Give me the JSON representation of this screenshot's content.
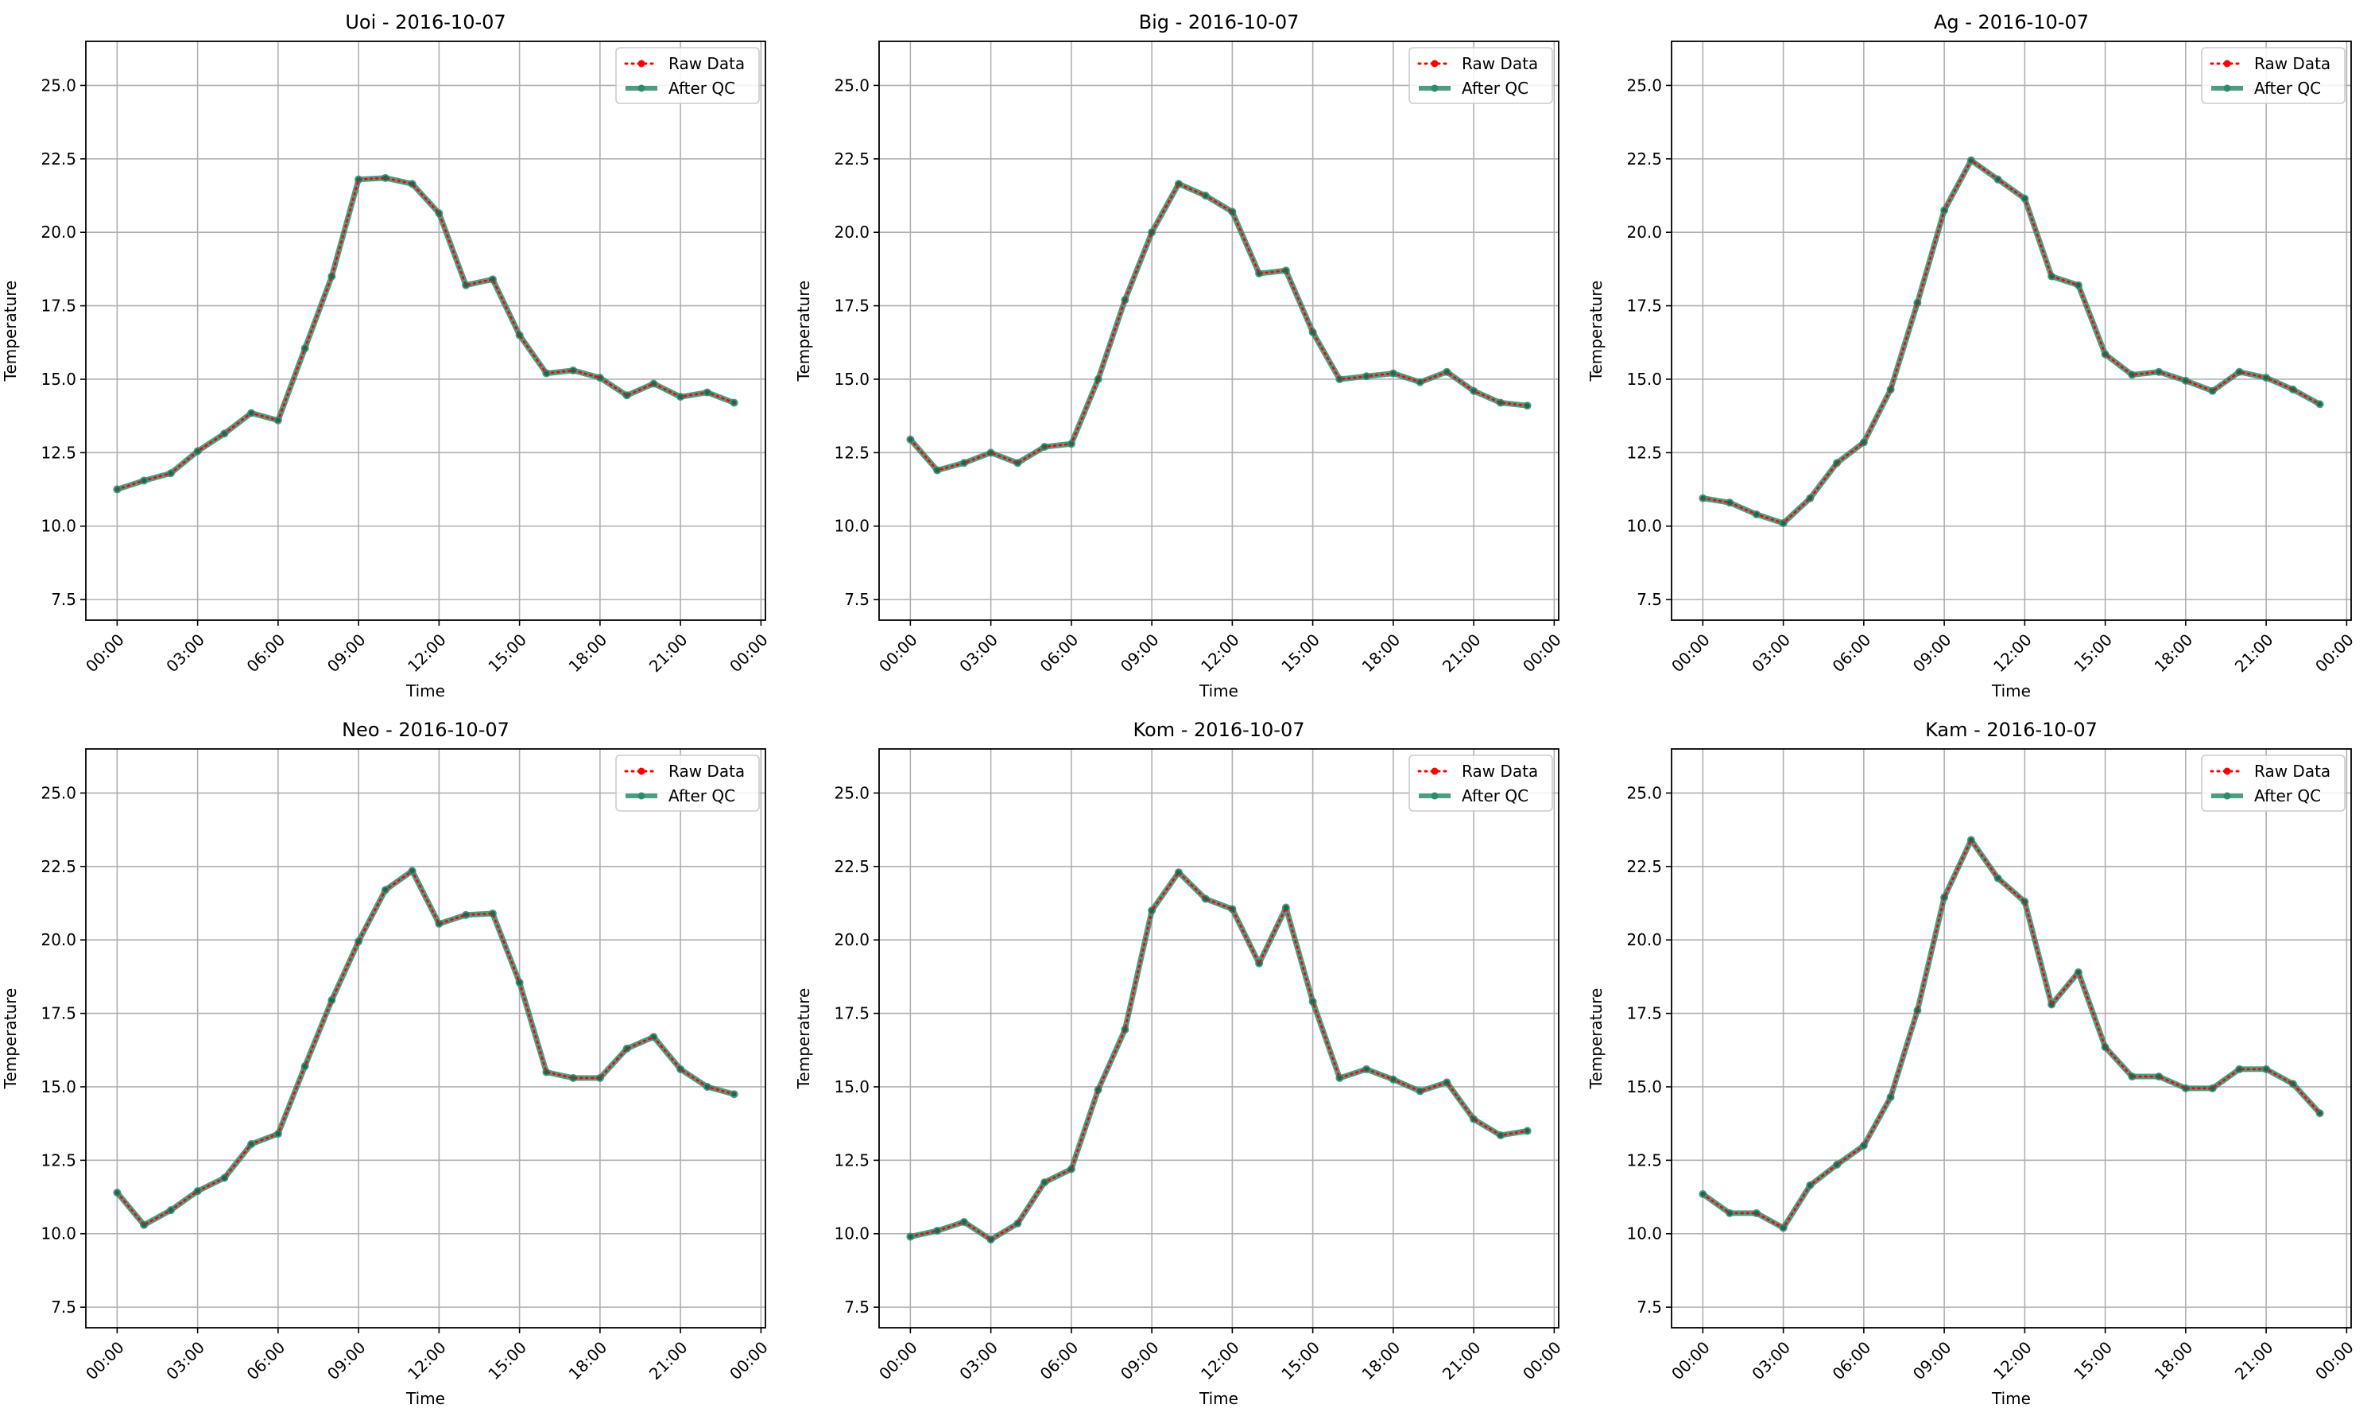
{
  "figure": {
    "legend": {
      "raw_label": "Raw Data",
      "qc_label": "After QC",
      "raw_color": "#ff0000",
      "qc_color": "#2e8b6e"
    }
  },
  "chart_data": [
    {
      "type": "line",
      "title": "Uoi - 2016-10-07",
      "xlabel": "Time",
      "ylabel": "Temperature",
      "x_ticks": [
        "00:00",
        "03:00",
        "06:00",
        "09:00",
        "12:00",
        "15:00",
        "18:00",
        "21:00",
        "00:00"
      ],
      "y_ticks": [
        "7.5",
        "10.0",
        "12.5",
        "15.0",
        "17.5",
        "20.0",
        "22.5",
        "25.0"
      ],
      "xlim": [
        "2016-10-06 22:50",
        "2016-10-08 00:10"
      ],
      "ylim": [
        6.8,
        26.5
      ],
      "grid": true,
      "legend_position": "upper-right",
      "x": [
        "00:00",
        "01:00",
        "02:00",
        "03:00",
        "04:00",
        "05:00",
        "06:00",
        "07:00",
        "08:00",
        "09:00",
        "10:00",
        "11:00",
        "12:00",
        "13:00",
        "14:00",
        "15:00",
        "16:00",
        "17:00",
        "18:00",
        "19:00",
        "20:00",
        "21:00",
        "22:00",
        "23:00"
      ],
      "series": [
        {
          "name": "Raw Data",
          "values": [
            11.25,
            11.55,
            11.8,
            12.55,
            13.15,
            13.85,
            13.6,
            16.05,
            18.5,
            21.8,
            21.85,
            21.65,
            20.65,
            18.2,
            18.4,
            16.5,
            15.2,
            15.3,
            15.05,
            14.45,
            14.85,
            14.4,
            14.55,
            14.2
          ]
        },
        {
          "name": "After QC",
          "values": [
            11.25,
            11.55,
            11.8,
            12.55,
            13.15,
            13.85,
            13.6,
            16.05,
            18.5,
            21.8,
            21.85,
            21.65,
            20.65,
            18.2,
            18.4,
            16.5,
            15.2,
            15.3,
            15.05,
            14.45,
            14.85,
            14.4,
            14.55,
            14.2
          ]
        }
      ]
    },
    {
      "type": "line",
      "title": "Big - 2016-10-07",
      "xlabel": "Time",
      "ylabel": "Temperature",
      "x_ticks": [
        "00:00",
        "03:00",
        "06:00",
        "09:00",
        "12:00",
        "15:00",
        "18:00",
        "21:00",
        "00:00"
      ],
      "y_ticks": [
        "7.5",
        "10.0",
        "12.5",
        "15.0",
        "17.5",
        "20.0",
        "22.5",
        "25.0"
      ],
      "xlim": [
        "2016-10-06 22:50",
        "2016-10-08 00:10"
      ],
      "ylim": [
        6.8,
        26.5
      ],
      "grid": true,
      "legend_position": "upper-right",
      "x": [
        "00:00",
        "01:00",
        "02:00",
        "03:00",
        "04:00",
        "05:00",
        "06:00",
        "07:00",
        "08:00",
        "09:00",
        "10:00",
        "11:00",
        "12:00",
        "13:00",
        "14:00",
        "15:00",
        "16:00",
        "17:00",
        "18:00",
        "19:00",
        "20:00",
        "21:00",
        "22:00",
        "23:00"
      ],
      "series": [
        {
          "name": "Raw Data",
          "values": [
            12.95,
            11.9,
            12.15,
            12.5,
            12.15,
            12.7,
            12.8,
            15.0,
            17.7,
            20.0,
            21.65,
            21.25,
            20.7,
            18.6,
            18.7,
            16.6,
            15.0,
            15.1,
            15.2,
            14.9,
            15.25,
            14.6,
            14.2,
            14.1
          ]
        },
        {
          "name": "After QC",
          "values": [
            12.95,
            11.9,
            12.15,
            12.5,
            12.15,
            12.7,
            12.8,
            15.0,
            17.7,
            20.0,
            21.65,
            21.25,
            20.7,
            18.6,
            18.7,
            16.6,
            15.0,
            15.1,
            15.2,
            14.9,
            15.25,
            14.6,
            14.2,
            14.1
          ]
        }
      ]
    },
    {
      "type": "line",
      "title": "Ag - 2016-10-07",
      "xlabel": "Time",
      "ylabel": "Temperature",
      "x_ticks": [
        "00:00",
        "03:00",
        "06:00",
        "09:00",
        "12:00",
        "15:00",
        "18:00",
        "21:00",
        "00:00"
      ],
      "y_ticks": [
        "7.5",
        "10.0",
        "12.5",
        "15.0",
        "17.5",
        "20.0",
        "22.5",
        "25.0"
      ],
      "xlim": [
        "2016-10-06 22:50",
        "2016-10-08 00:10"
      ],
      "ylim": [
        6.8,
        26.5
      ],
      "grid": true,
      "legend_position": "upper-right",
      "x": [
        "00:00",
        "01:00",
        "02:00",
        "03:00",
        "04:00",
        "05:00",
        "06:00",
        "07:00",
        "08:00",
        "09:00",
        "10:00",
        "11:00",
        "12:00",
        "13:00",
        "14:00",
        "15:00",
        "16:00",
        "17:00",
        "18:00",
        "19:00",
        "20:00",
        "21:00",
        "22:00",
        "23:00"
      ],
      "series": [
        {
          "name": "Raw Data",
          "values": [
            10.95,
            10.8,
            10.4,
            10.1,
            10.95,
            12.15,
            12.85,
            14.65,
            17.6,
            20.75,
            22.45,
            21.8,
            21.15,
            18.5,
            18.2,
            15.85,
            15.15,
            15.25,
            14.95,
            14.6,
            15.25,
            15.05,
            14.65,
            14.15
          ]
        },
        {
          "name": "After QC",
          "values": [
            10.95,
            10.8,
            10.4,
            10.1,
            10.95,
            12.15,
            12.85,
            14.65,
            17.6,
            20.75,
            22.45,
            21.8,
            21.15,
            18.5,
            18.2,
            15.85,
            15.15,
            15.25,
            14.95,
            14.6,
            15.25,
            15.05,
            14.65,
            14.15
          ]
        }
      ]
    },
    {
      "type": "line",
      "title": "Neo - 2016-10-07",
      "xlabel": "Time",
      "ylabel": "Temperature",
      "x_ticks": [
        "00:00",
        "03:00",
        "06:00",
        "09:00",
        "12:00",
        "15:00",
        "18:00",
        "21:00",
        "00:00"
      ],
      "y_ticks": [
        "7.5",
        "10.0",
        "12.5",
        "15.0",
        "17.5",
        "20.0",
        "22.5",
        "25.0"
      ],
      "xlim": [
        "2016-10-06 22:50",
        "2016-10-08 00:10"
      ],
      "ylim": [
        6.8,
        26.5
      ],
      "grid": true,
      "legend_position": "upper-right",
      "x": [
        "00:00",
        "01:00",
        "02:00",
        "03:00",
        "04:00",
        "05:00",
        "06:00",
        "07:00",
        "08:00",
        "09:00",
        "10:00",
        "11:00",
        "12:00",
        "13:00",
        "14:00",
        "15:00",
        "16:00",
        "17:00",
        "18:00",
        "19:00",
        "20:00",
        "21:00",
        "22:00",
        "23:00"
      ],
      "series": [
        {
          "name": "Raw Data",
          "values": [
            11.4,
            10.3,
            10.8,
            11.45,
            11.9,
            13.05,
            13.4,
            15.7,
            17.95,
            19.95,
            21.7,
            22.35,
            20.55,
            20.85,
            20.9,
            18.55,
            15.5,
            15.3,
            15.3,
            16.3,
            16.7,
            15.6,
            15.0,
            14.75
          ]
        },
        {
          "name": "After QC",
          "values": [
            11.4,
            10.3,
            10.8,
            11.45,
            11.9,
            13.05,
            13.4,
            15.7,
            17.95,
            19.95,
            21.7,
            22.35,
            20.55,
            20.85,
            20.9,
            18.55,
            15.5,
            15.3,
            15.3,
            16.3,
            16.7,
            15.6,
            15.0,
            14.75
          ]
        }
      ]
    },
    {
      "type": "line",
      "title": "Kom - 2016-10-07",
      "xlabel": "Time",
      "ylabel": "Temperature",
      "x_ticks": [
        "00:00",
        "03:00",
        "06:00",
        "09:00",
        "12:00",
        "15:00",
        "18:00",
        "21:00",
        "00:00"
      ],
      "y_ticks": [
        "7.5",
        "10.0",
        "12.5",
        "15.0",
        "17.5",
        "20.0",
        "22.5",
        "25.0"
      ],
      "xlim": [
        "2016-10-06 22:50",
        "2016-10-08 00:10"
      ],
      "ylim": [
        6.8,
        26.5
      ],
      "grid": true,
      "legend_position": "upper-right",
      "x": [
        "00:00",
        "01:00",
        "02:00",
        "03:00",
        "04:00",
        "05:00",
        "06:00",
        "07:00",
        "08:00",
        "09:00",
        "10:00",
        "11:00",
        "12:00",
        "13:00",
        "14:00",
        "15:00",
        "16:00",
        "17:00",
        "18:00",
        "19:00",
        "20:00",
        "21:00",
        "22:00",
        "23:00"
      ],
      "series": [
        {
          "name": "Raw Data",
          "values": [
            9.9,
            10.1,
            10.4,
            9.8,
            10.35,
            11.75,
            12.2,
            14.9,
            16.95,
            21.0,
            22.3,
            21.4,
            21.05,
            19.2,
            21.1,
            17.9,
            15.3,
            15.6,
            15.25,
            14.85,
            15.15,
            13.9,
            13.35,
            13.5
          ]
        },
        {
          "name": "After QC",
          "values": [
            9.9,
            10.1,
            10.4,
            9.8,
            10.35,
            11.75,
            12.2,
            14.9,
            16.95,
            21.0,
            22.3,
            21.4,
            21.05,
            19.2,
            21.1,
            17.9,
            15.3,
            15.6,
            15.25,
            14.85,
            15.15,
            13.9,
            13.35,
            13.5
          ]
        }
      ]
    },
    {
      "type": "line",
      "title": "Kam - 2016-10-07",
      "xlabel": "Time",
      "ylabel": "Temperature",
      "x_ticks": [
        "00:00",
        "03:00",
        "06:00",
        "09:00",
        "12:00",
        "15:00",
        "18:00",
        "21:00",
        "00:00"
      ],
      "y_ticks": [
        "7.5",
        "10.0",
        "12.5",
        "15.0",
        "17.5",
        "20.0",
        "22.5",
        "25.0"
      ],
      "xlim": [
        "2016-10-06 22:50",
        "2016-10-08 00:10"
      ],
      "ylim": [
        6.8,
        26.5
      ],
      "grid": true,
      "legend_position": "upper-right",
      "x": [
        "00:00",
        "01:00",
        "02:00",
        "03:00",
        "04:00",
        "05:00",
        "06:00",
        "07:00",
        "08:00",
        "09:00",
        "10:00",
        "11:00",
        "12:00",
        "13:00",
        "14:00",
        "15:00",
        "16:00",
        "17:00",
        "18:00",
        "19:00",
        "20:00",
        "21:00",
        "22:00",
        "23:00"
      ],
      "series": [
        {
          "name": "Raw Data",
          "values": [
            11.35,
            10.7,
            10.7,
            10.2,
            11.65,
            12.35,
            13.0,
            14.65,
            17.6,
            21.45,
            23.4,
            22.1,
            21.3,
            17.8,
            18.9,
            16.35,
            15.35,
            15.35,
            14.95,
            14.95,
            15.6,
            15.6,
            15.1,
            14.1
          ]
        },
        {
          "name": "After QC",
          "values": [
            11.35,
            10.7,
            10.7,
            10.2,
            11.65,
            12.35,
            13.0,
            14.65,
            17.6,
            21.45,
            23.4,
            22.1,
            21.3,
            17.8,
            18.9,
            16.35,
            15.35,
            15.35,
            14.95,
            14.95,
            15.6,
            15.6,
            15.1,
            14.1
          ]
        }
      ]
    }
  ]
}
